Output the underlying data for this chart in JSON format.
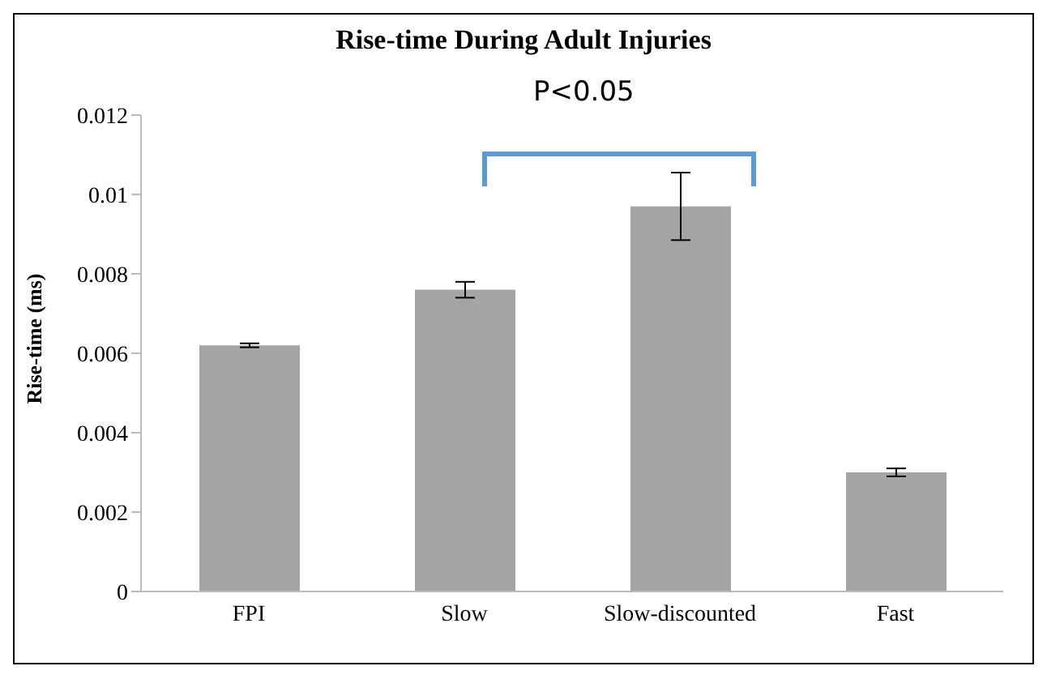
{
  "chart_data": {
    "type": "bar",
    "title": "Rise-time During Adult Injuries",
    "ylabel": "Rise-time (ms)",
    "categories": [
      "FPI",
      "Slow",
      "Slow-discounted",
      "Fast"
    ],
    "values": [
      0.0062,
      0.0076,
      0.0097,
      0.003
    ],
    "errors": [
      5e-05,
      0.0002,
      0.00085,
      0.0001
    ],
    "color": "#a5a5a5",
    "ylim": [
      0,
      0.012
    ],
    "yticks": [
      0,
      0.002,
      0.004,
      0.006,
      0.008,
      0.01,
      0.012
    ],
    "grid": false,
    "legend": false,
    "annotations": [
      "P<0.05"
    ]
  }
}
